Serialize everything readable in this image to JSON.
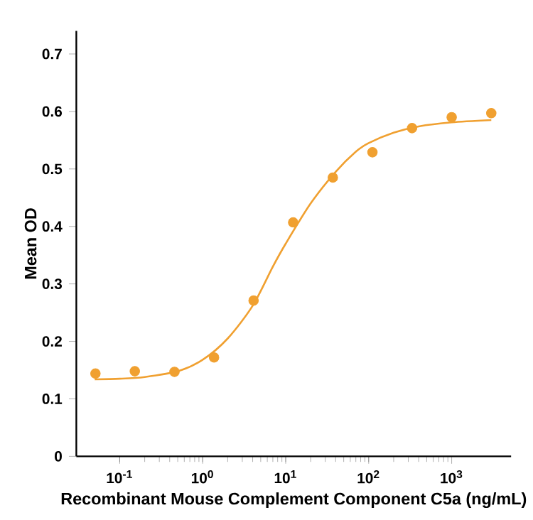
{
  "chart_data": {
    "type": "scatter",
    "xlabel": "Recombinant Mouse Complement Component C5a (ng/mL)",
    "ylabel": "Mean OD",
    "log": "x",
    "grid": false,
    "xlim": [
      0.03,
      5200
    ],
    "xticks": [
      {
        "value": 0.1,
        "label": "10$^{-1}$"
      },
      {
        "value": 1,
        "label": "10$^{0}$"
      },
      {
        "value": 10,
        "label": "10$^{1}$"
      },
      {
        "value": 100,
        "label": "10$^{2}$"
      },
      {
        "value": 1000,
        "label": "10$^{3}$"
      }
    ],
    "ylim": [
      0,
      0.74
    ],
    "yticks": [
      0,
      0.1,
      0.2,
      0.3,
      0.4,
      0.5,
      0.6,
      0.7
    ],
    "series": [
      {
        "type": "line",
        "color": "#f0a030",
        "marker": "none",
        "line_style": "solid",
        "x": [
          0.05,
          0.1,
          0.2,
          0.5,
          1,
          2,
          4,
          7,
          10,
          20,
          40,
          70,
          100,
          200,
          400,
          1000,
          3000
        ],
        "values": [
          0.134,
          0.135,
          0.138,
          0.148,
          0.168,
          0.205,
          0.262,
          0.33,
          0.37,
          0.44,
          0.495,
          0.53,
          0.545,
          0.563,
          0.574,
          0.581,
          0.585
        ]
      },
      {
        "color": "#f0a030",
        "marker": "circle",
        "x": [
          0.051,
          0.152,
          0.457,
          1.37,
          4.1,
          12.3,
          37,
          111,
          333,
          1000,
          3000
        ],
        "values": [
          0.144,
          0.148,
          0.147,
          0.172,
          0.271,
          0.407,
          0.485,
          0.529,
          0.571,
          0.59,
          0.597
        ]
      }
    ]
  }
}
